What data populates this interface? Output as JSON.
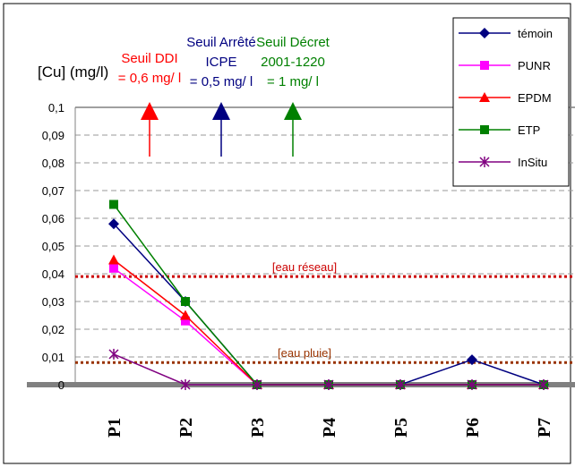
{
  "chart_data": {
    "type": "line",
    "ylabel": "[Cu] (mg/l)",
    "ylim": [
      0,
      0.1
    ],
    "yticks": [
      "0",
      "0,01",
      "0,02",
      "0,03",
      "0,04",
      "0,05",
      "0,06",
      "0,07",
      "0,08",
      "0,09",
      "0,1"
    ],
    "categories": [
      "P1",
      "P2",
      "P3",
      "P4",
      "P5",
      "P6",
      "P7"
    ],
    "grid": true,
    "legend_position": "top-right",
    "series": [
      {
        "name": "témoin",
        "color": "#000080",
        "marker": "diamond",
        "values": [
          0.058,
          0.03,
          0,
          0,
          0,
          0.009,
          0
        ]
      },
      {
        "name": "PUNR",
        "color": "#ff00ff",
        "marker": "square",
        "values": [
          0.042,
          0.023,
          0,
          0,
          0,
          0,
          0
        ]
      },
      {
        "name": "EPDM",
        "color": "#ff0000",
        "marker": "triangle",
        "values": [
          0.045,
          0.025,
          0,
          0,
          0,
          0,
          0
        ]
      },
      {
        "name": "ETP",
        "color": "#008000",
        "marker": "square",
        "values": [
          0.065,
          0.03,
          0,
          0,
          0,
          0,
          0
        ]
      },
      {
        "name": "InSitu",
        "color": "#800080",
        "marker": "star",
        "values": [
          0.011,
          0,
          0,
          0,
          0,
          0,
          0
        ]
      }
    ],
    "reference_lines": [
      {
        "label": "[eau réseau]",
        "value": 0.039,
        "color": "#cc0000"
      },
      {
        "label": "[eau pluie]",
        "value": 0.008,
        "color": "#993300"
      }
    ],
    "thresholds": [
      {
        "line1": "Seuil DDI",
        "line2": "= 0,6 mg/ l",
        "color": "#ff0000",
        "x_between": [
          1,
          2
        ]
      },
      {
        "line1": "Seuil Arrêté",
        "line2": "ICPE",
        "line3": "= 0,5 mg/ l",
        "color": "#000080",
        "x_between": [
          2,
          3
        ]
      },
      {
        "line1": "Seuil Décret",
        "line2": "2001-1220",
        "line3": "= 1 mg/ l",
        "color": "#008000",
        "x_between": [
          3,
          4
        ]
      }
    ]
  }
}
